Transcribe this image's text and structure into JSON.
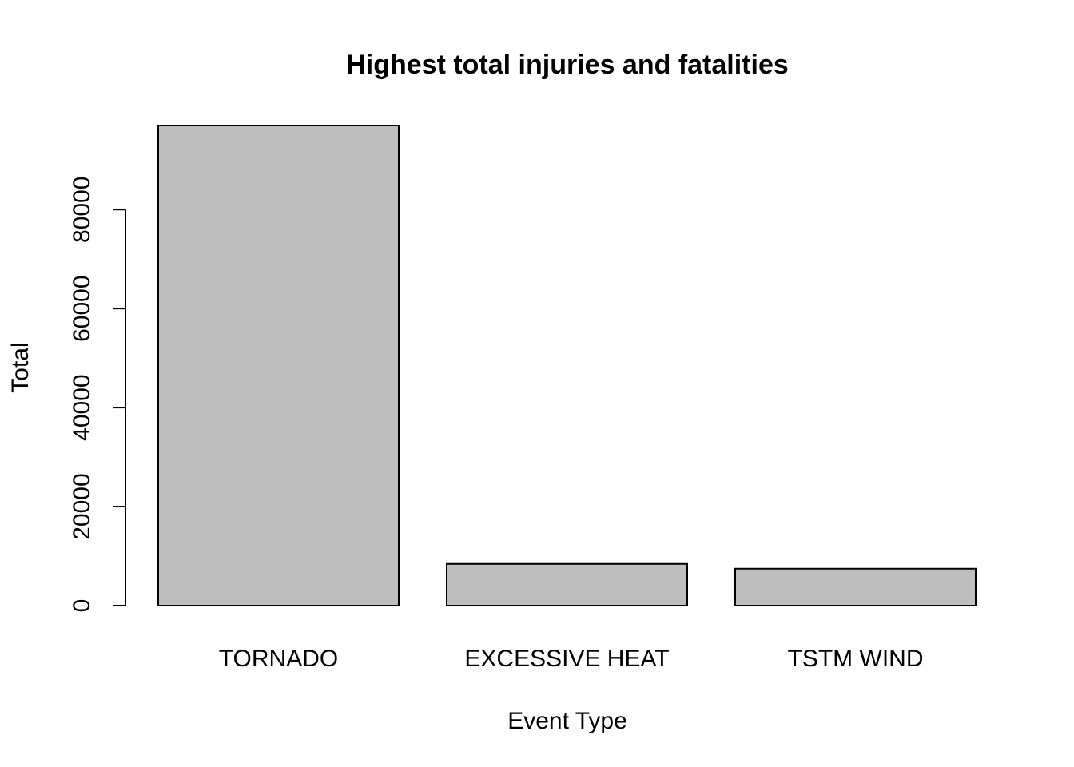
{
  "chart_data": {
    "type": "bar",
    "title": "Highest total injuries and fatalities",
    "xlabel": "Event Type",
    "ylabel": "Total",
    "categories": [
      "TORNADO",
      "EXCESSIVE HEAT",
      "TSTM WIND"
    ],
    "values": [
      96979,
      8428,
      7461
    ],
    "yticks": [
      0,
      20000,
      40000,
      60000,
      80000
    ],
    "ytick_labels": [
      "0",
      "20000",
      "40000",
      "60000",
      "80000"
    ],
    "ylim": [
      0,
      96979
    ],
    "bar_color": "#bebebe",
    "grid": false,
    "legend": "none"
  }
}
